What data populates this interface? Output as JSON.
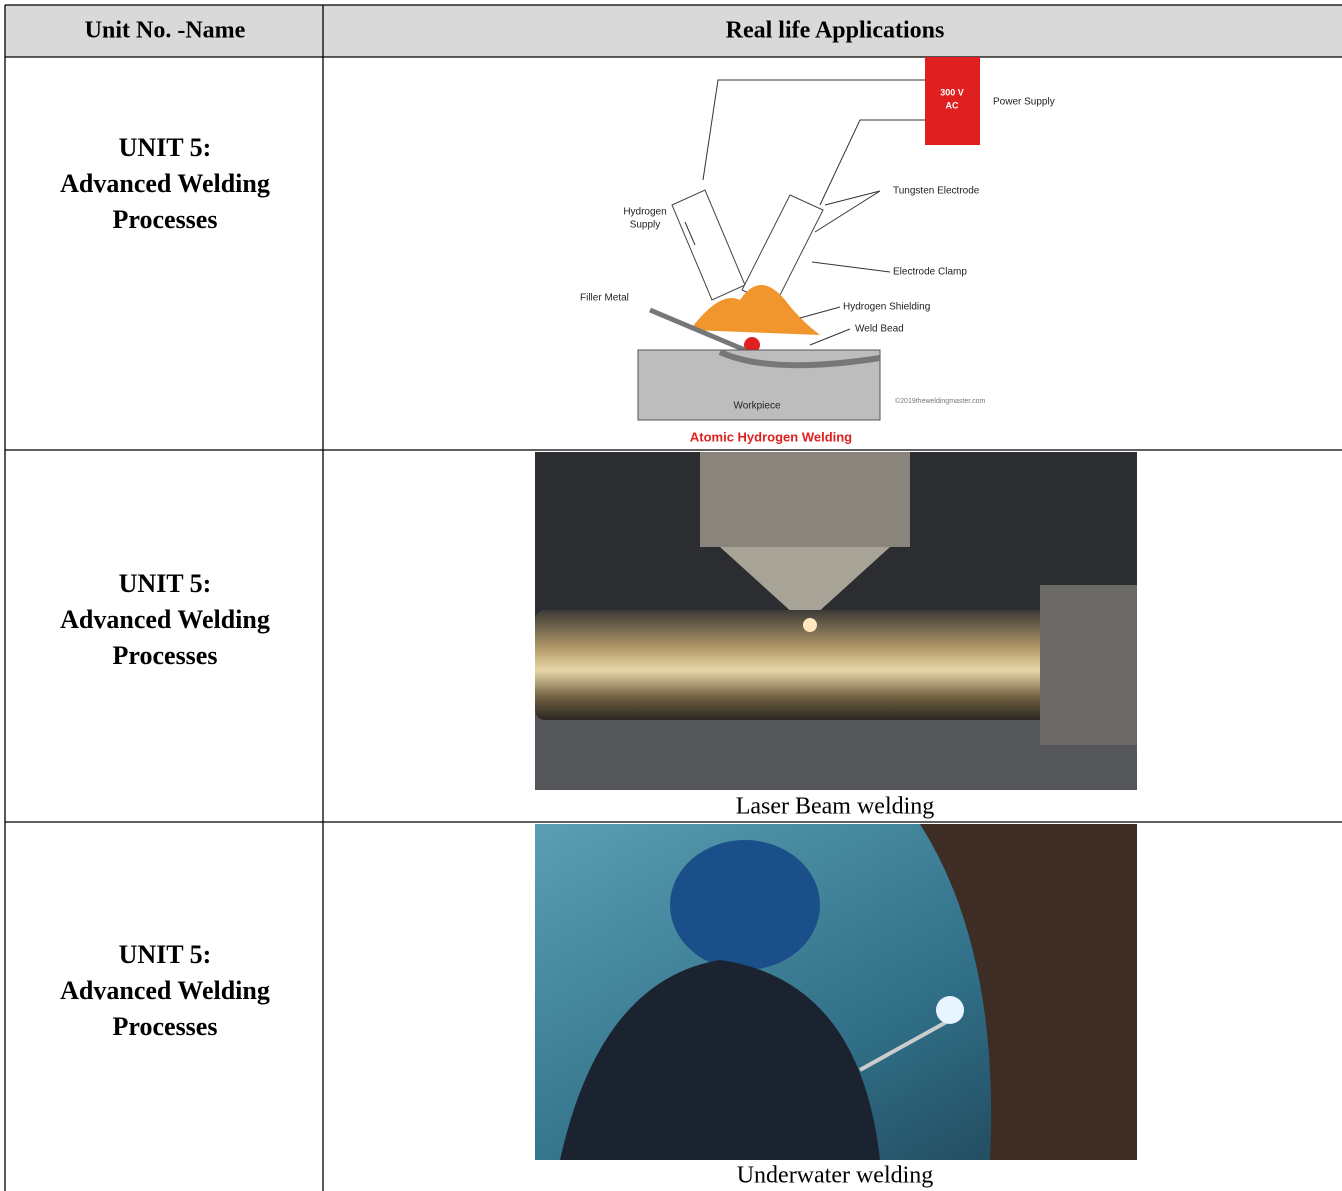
{
  "table": {
    "header": [
      "Unit No. -Name",
      "Real life Applications"
    ],
    "rows": [
      {
        "unit": [
          "UNIT 5:",
          "Advanced Welding",
          "Processes"
        ],
        "figure": {
          "labels": [
            "300 V",
            "AC",
            "Power Supply",
            "Tungsten Electrode",
            "Hydrogen",
            "Supply",
            "Electrode Clamp",
            "Filler Metal",
            "Hydrogen Shielding",
            "Weld Bead",
            "Workpiece",
            "©2019theweldingmaster.com"
          ],
          "caption": "Atomic Hydrogen Welding"
        }
      },
      {
        "unit": [
          "UNIT 5:",
          "Advanced Welding",
          "Processes"
        ],
        "caption": "Laser Beam welding"
      },
      {
        "unit": [
          "UNIT 5:",
          "Advanced Welding",
          "Processes"
        ],
        "caption": "Underwater welding"
      }
    ]
  }
}
